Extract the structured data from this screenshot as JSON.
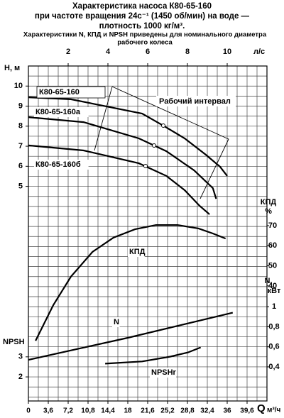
{
  "chart_data": {
    "type": "line",
    "title": [
      "Характеристика насоса К80-65-160",
      "при частоте вращения 24с⁻¹ (1450 об/мин) на воде —",
      "плотность 1000 кг/м³."
    ],
    "subtitle": [
      "Характеристики N, КПД и NPSH приведены для номинального диаметра",
      "рабочего колеса"
    ],
    "xlabel": [
      "Q",
      "м³/ч"
    ],
    "x2label": "л/с",
    "ylabel": "H, м",
    "y2label": [
      "КПД",
      "%"
    ],
    "y3label": [
      "N,",
      "кВт"
    ],
    "y4label": "NPSH",
    "annotation": "Рабочий интервал",
    "xlim": [
      0,
      43.2
    ],
    "xticks": [
      0,
      {
        "value": 3.6,
        "label": "3,6"
      },
      {
        "value": 7.2,
        "label": "7,2"
      },
      {
        "value": 10.8,
        "label": "10,8"
      },
      {
        "value": 14.4,
        "label": "14,4"
      },
      18,
      {
        "value": 21.6,
        "label": "21,6"
      },
      {
        "value": 25.2,
        "label": "25,2"
      },
      {
        "value": 28.8,
        "label": "28,8"
      },
      {
        "value": 32.4,
        "label": "32,4"
      },
      36,
      {
        "value": 39.6,
        "label": "39,6"
      }
    ],
    "x2lim": [
      0,
      12
    ],
    "x2ticks": [
      2,
      4,
      6,
      8,
      10
    ],
    "ylim": [
      -5.7,
      11
    ],
    "yticks": [
      5,
      6,
      7,
      8,
      9,
      10
    ],
    "y2lim": [
      -17.3,
      149.5
    ],
    "y2ticks": [
      40,
      50,
      60,
      70
    ],
    "y3lim": [
      0.06,
      3.4
    ],
    "y3ticks": [
      {
        "value": 0.4,
        "label": "0,4"
      },
      {
        "value": 0.6,
        "label": "0,6"
      },
      {
        "value": 0.8,
        "label": "0,8"
      },
      1
    ],
    "y4lim": [
      0.8,
      17.5
    ],
    "y4ticks": [
      2,
      3
    ],
    "grid": true,
    "grid_step": {
      "x": 1.8,
      "y": 0.5
    },
    "series": [
      {
        "name": "К80-65-160",
        "axis": "y",
        "color": "#000000",
        "x": [
          0,
          7.7,
          20.6,
          24.4,
          28.3,
          32.1,
          34.7,
          36
        ],
        "values": [
          9.44,
          9.34,
          8.63,
          8.03,
          7.39,
          6.58,
          5.98,
          5.52
        ]
      },
      {
        "name": "К80-65-160а",
        "axis": "y",
        "color": "#000000",
        "x": [
          0,
          10,
          20,
          25,
          30,
          33.4,
          34
        ],
        "values": [
          8.45,
          8.2,
          7.39,
          6.75,
          5.8,
          4.91,
          4.38
        ]
      },
      {
        "name": "К80-65-160б",
        "axis": "y",
        "color": "#000000",
        "x": [
          0,
          10,
          20,
          25,
          28.3,
          31,
          32.8
        ],
        "values": [
          7.04,
          6.79,
          6.15,
          5.52,
          4.81,
          4.03,
          3.6
        ]
      },
      {
        "name": "КПД",
        "axis": "y2",
        "color": "#000000",
        "x": [
          1.3,
          4.5,
          7.7,
          11.6,
          15.4,
          19.3,
          23.1,
          27,
          30.8,
          33.4,
          35.7
        ],
        "values": [
          12.7,
          30.4,
          44.6,
          56.9,
          64,
          68.2,
          70.3,
          70.3,
          68.6,
          66.1,
          63.6
        ]
      },
      {
        "name": "N",
        "axis": "y3",
        "color": "#000000",
        "x": [
          0,
          18,
          37
        ],
        "values": [
          0.47,
          0.69,
          0.94
        ]
      },
      {
        "name": "NPSHr",
        "axis": "y4",
        "color": "#000000",
        "x": [
          13.9,
          20.6,
          25.7,
          28.9,
          31.2
        ],
        "values": [
          2.66,
          2.77,
          3.01,
          3.22,
          3.47
        ]
      }
    ]
  }
}
